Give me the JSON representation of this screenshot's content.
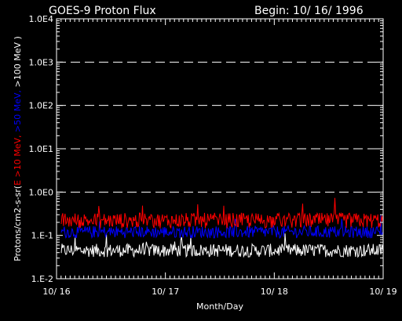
{
  "chart_data": {
    "type": "line",
    "title": "GOES-9 Proton Flux",
    "title_right": "Begin: 10/ 16/ 1996",
    "xlabel": "Month/Day",
    "ylabel_parts": [
      {
        "text": "Protons/cm2-s-sr(",
        "color": "#ffffff"
      },
      {
        "text": "E >10 MeV, ",
        "color": "#ff0000"
      },
      {
        "text": ">50 MeV, ",
        "color": "#0000ff"
      },
      {
        "text": ">100 MeV )",
        "color": "#ffffff"
      }
    ],
    "y_scale": "log",
    "ylim": [
      0.01,
      10000
    ],
    "y_ticks": [
      {
        "value": 0.01,
        "label": "1.E-2"
      },
      {
        "value": 0.1,
        "label": "1.E-1"
      },
      {
        "value": 1,
        "label": "1.0E0"
      },
      {
        "value": 10,
        "label": "1.0E1"
      },
      {
        "value": 100,
        "label": "1.0E2"
      },
      {
        "value": 1000,
        "label": "1.0E3"
      },
      {
        "value": 10000,
        "label": "1.0E4"
      }
    ],
    "dashed_gridlines_at": [
      1,
      10,
      100,
      1000
    ],
    "xlim": [
      "1996-10-16",
      "1996-10-19"
    ],
    "x_ticks": [
      {
        "value": "1996-10-16",
        "label": "10/ 16"
      },
      {
        "value": "1996-10-17",
        "label": "10/ 17"
      },
      {
        "value": "1996-10-18",
        "label": "10/ 18"
      },
      {
        "value": "1996-10-19",
        "label": "10/ 19"
      }
    ],
    "series": [
      {
        "name": "E >10 MeV",
        "color": "#ff0000",
        "typical": 0.22,
        "min": 0.12,
        "max": 0.75
      },
      {
        "name": ">50 MeV",
        "color": "#0000ff",
        "typical": 0.12,
        "min": 0.07,
        "max": 0.3
      },
      {
        "name": ">100 MeV",
        "color": "#ffffff",
        "typical": 0.045,
        "min": 0.025,
        "max": 0.12
      }
    ]
  }
}
